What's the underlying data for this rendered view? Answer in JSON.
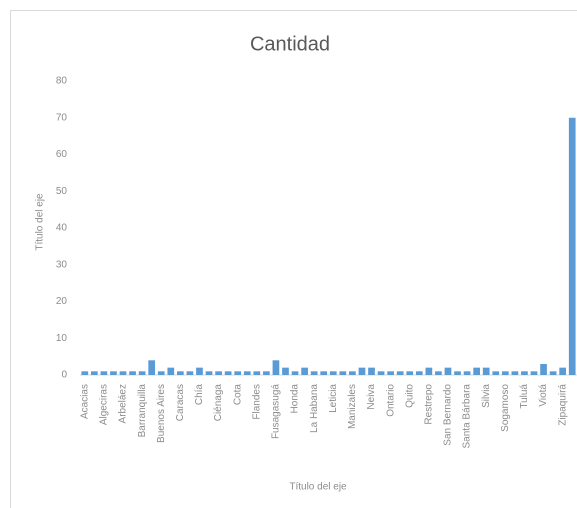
{
  "chart_data": {
    "type": "bar",
    "title": "Cantidad",
    "x_label": "Título del eje",
    "y_label": "Título del eje",
    "categories": [
      "Acacias",
      null,
      "Algeciras",
      null,
      "Arbeláez",
      null,
      "Barranquilla",
      null,
      "Buenos Aires",
      null,
      "Caracas",
      null,
      "Chía",
      null,
      "Ciénaga",
      null,
      "Cota",
      null,
      "Flandes",
      null,
      "Fusagasugá",
      null,
      "Honda",
      null,
      "La Habana",
      null,
      "Leticia",
      null,
      "Manizales",
      null,
      "Neiva",
      null,
      "Ontario",
      null,
      "Quito",
      null,
      "Restrepo",
      null,
      "San Bernardo",
      null,
      "Santa Bárbara",
      null,
      "Silvia",
      null,
      "Sogamoso",
      null,
      "Tuluá",
      null,
      "Viotá",
      null,
      "Zipaquirá",
      null
    ],
    "values": [
      1,
      1,
      1,
      1,
      1,
      1,
      1,
      4,
      1,
      2,
      1,
      1,
      2,
      1,
      1,
      1,
      1,
      1,
      1,
      1,
      4,
      2,
      1,
      2,
      1,
      1,
      1,
      1,
      1,
      2,
      2,
      1,
      1,
      1,
      1,
      1,
      2,
      1,
      2,
      1,
      1,
      2,
      2,
      1,
      1,
      1,
      1,
      1,
      3,
      1,
      2,
      70
    ],
    "color": "#5b9bd5",
    "ylim": [
      0,
      80
    ],
    "yticks": [
      0,
      10,
      20,
      30,
      40,
      50,
      60,
      70,
      80
    ],
    "grid": false
  }
}
